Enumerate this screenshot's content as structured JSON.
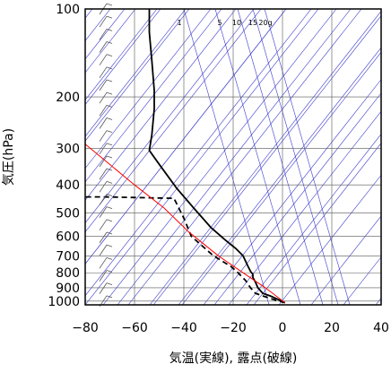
{
  "chart_data": {
    "type": "line",
    "title": "",
    "xlabel": "気温(実線), 露点(破線)",
    "ylabel": "気圧(hPa)",
    "xlim": [
      -80,
      40
    ],
    "ylim": [
      1030,
      100
    ],
    "y_scale": "log",
    "x_ticks": [
      -80,
      -60,
      -40,
      -20,
      0,
      20,
      40
    ],
    "x_tick_labels": [
      "−80",
      "−60",
      "−40",
      "−20",
      "0",
      "20",
      "40"
    ],
    "y_ticks": [
      100,
      200,
      300,
      400,
      500,
      600,
      700,
      800,
      900,
      1000
    ],
    "y_tick_labels": [
      "100",
      "200",
      "300",
      "400",
      "500",
      "600",
      "700",
      "800",
      "900",
      "1000"
    ],
    "grid": true,
    "mixing_ratio_labels": [
      "1",
      "5",
      "10",
      "15",
      "20g"
    ],
    "mixing_ratio_values": [
      1,
      5,
      10,
      15,
      20
    ],
    "series": [
      {
        "style": "solid",
        "color": "#000000",
        "points": [
          {
            "t": 1,
            "p": 1013
          },
          {
            "t": -2,
            "p": 985
          },
          {
            "t": -5,
            "p": 960
          },
          {
            "t": -8,
            "p": 940
          },
          {
            "t": -10,
            "p": 900
          },
          {
            "t": -11,
            "p": 860
          },
          {
            "t": -12,
            "p": 830
          },
          {
            "t": -12,
            "p": 810
          },
          {
            "t": -13,
            "p": 790
          },
          {
            "t": -14,
            "p": 760
          },
          {
            "t": -16,
            "p": 700
          },
          {
            "t": -19,
            "p": 660
          },
          {
            "t": -23,
            "p": 620
          },
          {
            "t": -29,
            "p": 560
          },
          {
            "t": -36,
            "p": 480
          },
          {
            "t": -43,
            "p": 410
          },
          {
            "t": -50,
            "p": 340
          },
          {
            "t": -54,
            "p": 305
          },
          {
            "t": -53,
            "p": 270
          },
          {
            "t": -52,
            "p": 220
          },
          {
            "t": -52,
            "p": 190
          },
          {
            "t": -53,
            "p": 150
          },
          {
            "t": -54,
            "p": 120
          },
          {
            "t": -54,
            "p": 100
          }
        ]
      },
      {
        "style": "dashed",
        "color": "#000000",
        "points": [
          {
            "t": 1,
            "p": 1013
          },
          {
            "t": -4,
            "p": 985
          },
          {
            "t": -8,
            "p": 960
          },
          {
            "t": -11,
            "p": 940
          },
          {
            "t": -13,
            "p": 900
          },
          {
            "t": -15,
            "p": 850
          },
          {
            "t": -18,
            "p": 800
          },
          {
            "t": -21,
            "p": 760
          },
          {
            "t": -28,
            "p": 700
          },
          {
            "t": -37,
            "p": 600
          },
          {
            "t": -40,
            "p": 520
          },
          {
            "t": -44,
            "p": 445
          },
          {
            "t": -72,
            "p": 440
          },
          {
            "t": -80,
            "p": 440
          }
        ]
      },
      {
        "style": "solid",
        "color": "#ff0000",
        "points": [
          {
            "t": 1,
            "p": 1013
          },
          {
            "t": -7,
            "p": 900
          },
          {
            "t": -16,
            "p": 800
          },
          {
            "t": -26,
            "p": 700
          },
          {
            "t": -38,
            "p": 580
          },
          {
            "t": -48,
            "p": 480
          },
          {
            "t": -60,
            "p": 400
          },
          {
            "t": -72,
            "p": 330
          },
          {
            "t": -80,
            "p": 290
          }
        ]
      }
    ],
    "wind_barbs_t": -72
  }
}
